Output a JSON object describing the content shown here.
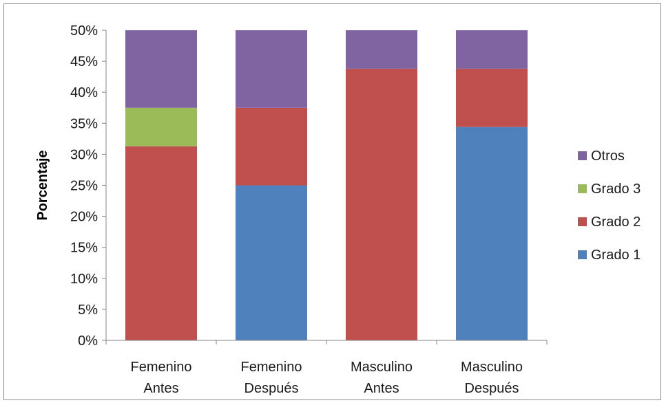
{
  "chart_data": {
    "type": "bar",
    "stacked": true,
    "title": "",
    "xlabel": "",
    "ylabel": "Porcentaje",
    "ylim": [
      0,
      50
    ],
    "y_ticks": [
      "0%",
      "5%",
      "10%",
      "15%",
      "20%",
      "25%",
      "30%",
      "35%",
      "40%",
      "45%",
      "50%"
    ],
    "categories": [
      [
        "Femenino",
        "Antes"
      ],
      [
        "Femenino",
        "Después"
      ],
      [
        "Masculino",
        "Antes"
      ],
      [
        "Masculino",
        "Después"
      ]
    ],
    "series": [
      {
        "name": "Grado 1",
        "color": "#4f81bd",
        "values": [
          0,
          25.0,
          0,
          34.4
        ]
      },
      {
        "name": "Grado 2",
        "color": "#c0504d",
        "values": [
          31.3,
          12.5,
          43.8,
          9.4
        ]
      },
      {
        "name": "Grado 3",
        "color": "#9bbb59",
        "values": [
          6.2,
          0,
          0,
          0
        ]
      },
      {
        "name": "Otros",
        "color": "#8064a2",
        "values": [
          12.5,
          12.5,
          6.2,
          6.2
        ]
      }
    ],
    "legend_order": [
      "Otros",
      "Grado 3",
      "Grado 2",
      "Grado 1"
    ],
    "legend_position": "right",
    "grid": false
  }
}
